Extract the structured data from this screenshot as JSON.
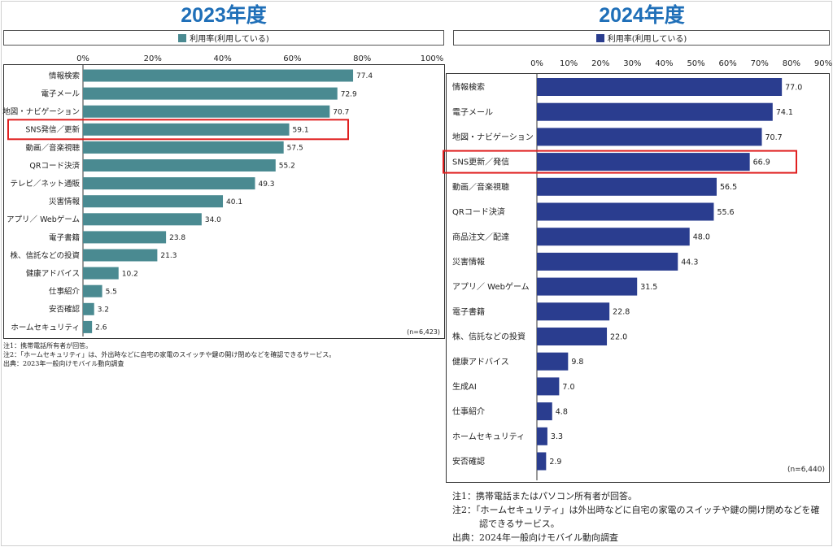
{
  "chart_data": [
    {
      "type": "bar",
      "orientation": "horizontal",
      "title": "2023年度",
      "legend": "利用率(利用している)",
      "color": "#4a8a91",
      "xlim": [
        0,
        100
      ],
      "ticks": [
        "0%",
        "20%",
        "40%",
        "60%",
        "80%",
        "100%"
      ],
      "tick_values": [
        0,
        20,
        40,
        60,
        80,
        100
      ],
      "categories": [
        "情報検索",
        "電子メール",
        "地図・ナビゲーション",
        "SNS発信／更新",
        "動画／音楽視聴",
        "QRコード決済",
        "テレビ／ネット通販",
        "災害情報",
        "アプリ／ Webゲーム",
        "電子書籍",
        "株、信託などの投資",
        "健康アドバイス",
        "仕事紹介",
        "安否確認",
        "ホームセキュリティ"
      ],
      "values": [
        77.4,
        72.9,
        70.7,
        59.1,
        57.5,
        55.2,
        49.3,
        40.1,
        34.0,
        23.8,
        21.3,
        10.2,
        5.5,
        3.2,
        2.6
      ],
      "value_labels": [
        "77.4",
        "72.9",
        "70.7",
        "59.1",
        "57.5",
        "55.2",
        "49.3",
        "40.1",
        "34.0",
        "23.8",
        "21.3",
        "10.2",
        "5.5",
        "3.2",
        "2.6"
      ],
      "highlight_index": 3,
      "n_label": "(n=6,423)",
      "notes": [
        "注1：携帯電話所有者が回答。",
        "注2：「ホームセキュリティ」は、外出時などに自宅の家電のスイッチや鍵の開け閉めなどを確認できるサービス。",
        "出典：2023年一般向けモバイル動向調査"
      ]
    },
    {
      "type": "bar",
      "orientation": "horizontal",
      "title": "2024年度",
      "legend": "利用率(利用している)",
      "color": "#2a3d8f",
      "xlim": [
        0,
        90
      ],
      "ticks": [
        "0%",
        "10%",
        "20%",
        "30%",
        "40%",
        "50%",
        "60%",
        "70%",
        "80%",
        "90%"
      ],
      "tick_values": [
        0,
        10,
        20,
        30,
        40,
        50,
        60,
        70,
        80,
        90
      ],
      "categories": [
        "情報検索",
        "電子メール",
        "地図・ナビゲーション",
        "SNS更新／発信",
        "動画／音楽視聴",
        "QRコード決済",
        "商品注文／配達",
        "災害情報",
        "アプリ／ Webゲーム",
        "電子書籍",
        "株、信託などの投資",
        "健康アドバイス",
        "生成AI",
        "仕事紹介",
        "ホームセキュリティ",
        "安否確認"
      ],
      "values": [
        77.0,
        74.1,
        70.7,
        66.9,
        56.5,
        55.6,
        48.0,
        44.3,
        31.5,
        22.8,
        22.0,
        9.8,
        7.0,
        4.8,
        3.3,
        2.9
      ],
      "value_labels": [
        "77.0",
        "74.1",
        "70.7",
        "66.9",
        "56.5",
        "55.6",
        "48.0",
        "44.3",
        "31.5",
        "22.8",
        "22.0",
        "9.8",
        "7.0",
        "4.8",
        "3.3",
        "2.9"
      ],
      "highlight_index": 3,
      "n_label": "(n=6,440)",
      "notes": [
        "注1：携帯電話またはパソコン所有者が回答。",
        "注2：「ホームセキュリティ」は外出時などに自宅の家電のスイッチや鍵の開け閉めなどを確",
        "　　　認できるサービス。",
        "出典：2024年一般向けモバイル動向調査"
      ]
    }
  ]
}
